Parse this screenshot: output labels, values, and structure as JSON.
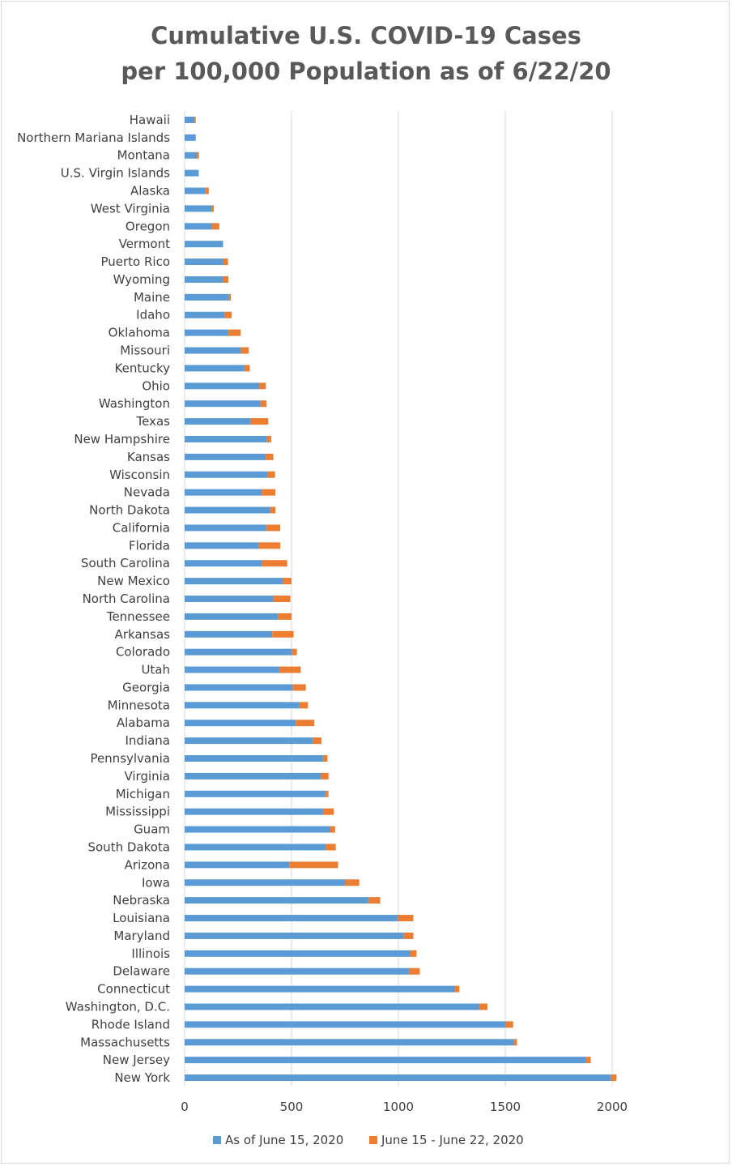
{
  "chart_data": {
    "type": "bar",
    "orientation": "horizontal",
    "stacked": true,
    "title_lines": [
      "Cumulative U.S. COVID-19 Cases",
      "per 100,000 Population as of 6/22/20"
    ],
    "xlim": [
      0,
      2000
    ],
    "x_ticks": [
      "0",
      "500",
      "1000",
      "1500",
      "2000"
    ],
    "grid": "vertical",
    "legend_position": "bottom",
    "colors": {
      "base": "#5b9bd5",
      "increment": "#ed7d31"
    },
    "categories": [
      "Hawaii",
      "Northern Mariana Islands",
      "Montana",
      "U.S. Virgin Islands",
      "Alaska",
      "West Virginia",
      "Oregon",
      "Vermont",
      "Puerto Rico",
      "Wyoming",
      "Maine",
      "Idaho",
      "Oklahoma",
      "Missouri",
      "Kentucky",
      "Ohio",
      "Washington",
      "Texas",
      "New Hampshire",
      "Kansas",
      "Wisconsin",
      "Nevada",
      "North Dakota",
      "California",
      "Florida",
      "South Carolina",
      "New Mexico",
      "North Carolina",
      "Tennessee",
      "Arkansas",
      "Colorado",
      "Utah",
      "Georgia",
      "Minnesota",
      "Alabama",
      "Indiana",
      "Pennsylvania",
      "Virginia",
      "Michigan",
      "Mississippi",
      "Guam",
      "South Dakota",
      "Arizona",
      "Iowa",
      "Nebraska",
      "Louisiana",
      "Maryland",
      "Illinois",
      "Delaware",
      "Connecticut",
      "Washington, D.C.",
      "Rhode Island",
      "Massachusetts",
      "New Jersey",
      "New York"
    ],
    "series": [
      {
        "name": "As of June 15, 2020",
        "values": [
          47,
          52,
          57,
          66,
          95,
          125,
          127,
          180,
          178,
          180,
          208,
          187,
          205,
          263,
          280,
          350,
          355,
          308,
          385,
          380,
          388,
          360,
          400,
          382,
          348,
          362,
          460,
          415,
          438,
          410,
          503,
          443,
          505,
          537,
          520,
          600,
          648,
          638,
          660,
          650,
          682,
          660,
          490,
          750,
          862,
          998,
          1025,
          1055,
          1050,
          1265,
          1380,
          1502,
          1540,
          1875,
          1995
        ]
      },
      {
        "name": "June 15 - June 22, 2020",
        "values": [
          5,
          0,
          10,
          0,
          18,
          12,
          35,
          0,
          25,
          25,
          8,
          33,
          57,
          37,
          25,
          30,
          28,
          83,
          20,
          35,
          35,
          65,
          25,
          65,
          100,
          118,
          40,
          80,
          63,
          100,
          22,
          100,
          62,
          40,
          87,
          40,
          20,
          35,
          13,
          48,
          22,
          47,
          228,
          67,
          53,
          72,
          45,
          30,
          50,
          20,
          37,
          35,
          15,
          25,
          25
        ]
      }
    ]
  }
}
